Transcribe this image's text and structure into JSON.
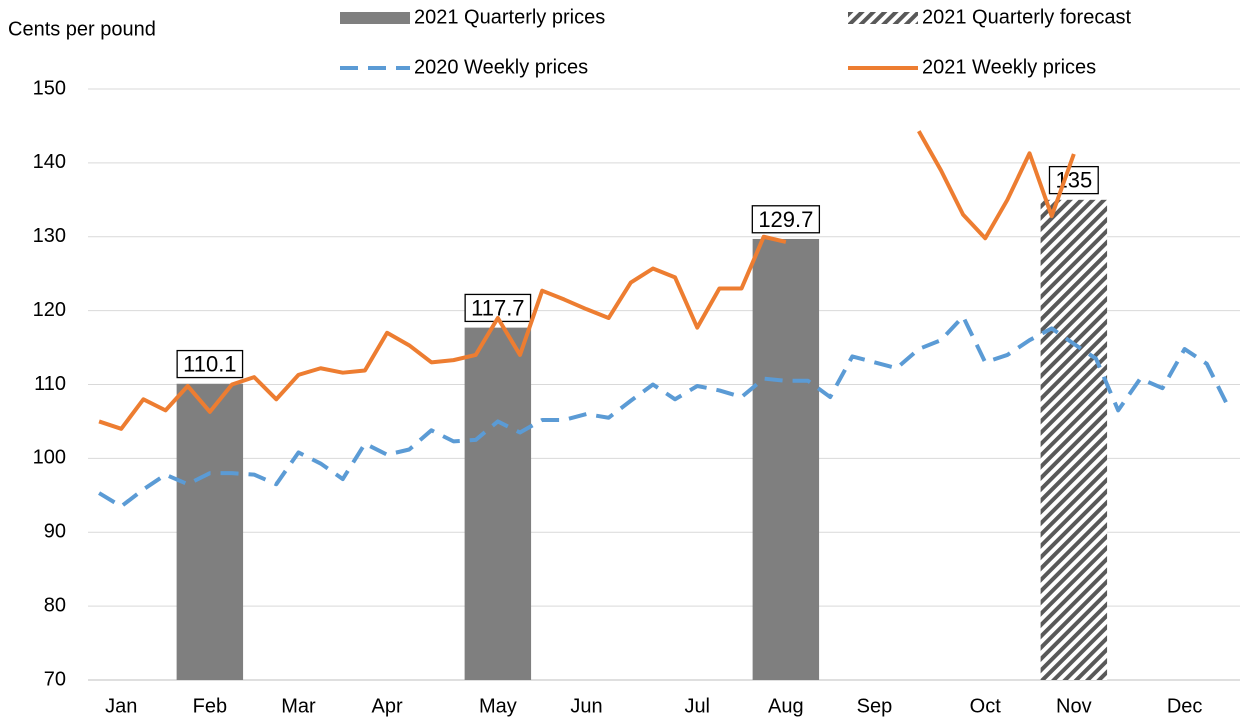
{
  "chart_data": {
    "type": "combo",
    "y_label": "Cents per pound",
    "categories": [
      null,
      "Jan",
      null,
      null,
      null,
      "Feb",
      null,
      null,
      null,
      "Mar",
      null,
      null,
      null,
      "Apr",
      null,
      null,
      null,
      null,
      "May",
      null,
      null,
      null,
      "Jun",
      null,
      null,
      null,
      null,
      "Jul",
      null,
      null,
      null,
      "Aug",
      null,
      null,
      null,
      "Sep",
      null,
      null,
      null,
      null,
      "Oct",
      null,
      null,
      null,
      "Nov",
      null,
      null,
      null,
      null,
      "Dec",
      null,
      null
    ],
    "ylim": [
      70,
      150
    ],
    "yticks": [
      70,
      80,
      90,
      100,
      110,
      120,
      130,
      140,
      150
    ],
    "grid": true,
    "series": [
      {
        "name": "2021 Quarterly prices",
        "type": "bar",
        "color": "#7f7f7f",
        "values": [
          null,
          null,
          null,
          null,
          null,
          110.1,
          null,
          null,
          null,
          null,
          null,
          null,
          null,
          null,
          null,
          null,
          null,
          null,
          117.7,
          null,
          null,
          null,
          null,
          null,
          null,
          null,
          null,
          null,
          null,
          null,
          null,
          129.7,
          null,
          null,
          null,
          null,
          null,
          null,
          null,
          null,
          null,
          null,
          null,
          null,
          null,
          null,
          null,
          null,
          null,
          null,
          null,
          null
        ]
      },
      {
        "name": "2021 Quarterly forecast",
        "type": "bar",
        "color": "#595959",
        "hatch": true,
        "values": [
          null,
          null,
          null,
          null,
          null,
          null,
          null,
          null,
          null,
          null,
          null,
          null,
          null,
          null,
          null,
          null,
          null,
          null,
          null,
          null,
          null,
          null,
          null,
          null,
          null,
          null,
          null,
          null,
          null,
          null,
          null,
          null,
          null,
          null,
          null,
          null,
          null,
          null,
          null,
          null,
          null,
          null,
          null,
          null,
          135,
          null,
          null,
          null,
          null,
          null,
          null,
          null
        ]
      },
      {
        "name": "2020 Weekly prices",
        "type": "line",
        "color": "#5b9bd5",
        "dashed": true,
        "values": [
          95.3,
          93.5,
          95.8,
          97.8,
          96.5,
          98,
          98,
          97.8,
          96.5,
          100.8,
          99.3,
          97.2,
          102,
          100.5,
          101.2,
          103.8,
          102.3,
          102.5,
          105,
          103.5,
          105.2,
          105.2,
          106,
          105.5,
          107.8,
          110,
          108,
          109.8,
          109.2,
          108.3,
          110.8,
          110.5,
          110.5,
          108.3,
          113.8,
          113,
          112.2,
          114.8,
          116,
          119.2,
          113,
          114,
          116,
          117.6,
          115.5,
          113.5,
          106.5,
          110.8,
          109.5,
          114.8,
          112.8,
          106.8
        ]
      },
      {
        "name": "2021 Weekly prices",
        "type": "line",
        "color": "#ed7d31",
        "values": [
          105,
          104,
          108,
          106.5,
          109.8,
          106.3,
          110,
          111,
          108,
          111.3,
          112.2,
          111.6,
          111.9,
          117,
          115.3,
          113,
          113.3,
          114,
          119,
          114,
          122.7,
          121.5,
          120.2,
          119,
          123.8,
          125.7,
          124.5,
          117.7,
          123,
          123,
          130,
          129.3,
          null,
          null,
          null,
          null,
          null,
          144.3,
          139,
          133,
          129.8,
          135,
          141.3,
          132.8,
          141.2,
          null,
          null,
          null,
          null,
          null,
          null,
          null
        ]
      }
    ]
  }
}
